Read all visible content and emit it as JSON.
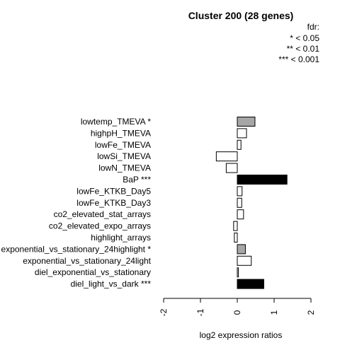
{
  "chart_data": {
    "type": "bar",
    "orientation": "horizontal",
    "title": "Cluster 200 (28 genes)",
    "xlabel": "log2 expression ratios",
    "ylabel": "",
    "xlim": [
      -2,
      2
    ],
    "xticks": [
      "-2",
      "-1",
      "0",
      "1",
      "2"
    ],
    "legend": {
      "title": "fdr:",
      "entries": [
        "* < 0.05",
        "** < 0.01",
        "*** < 0.001"
      ],
      "placement": "top-right"
    },
    "categories": [
      "lowtemp_TMEVA *",
      "highpH_TMEVA",
      "lowFe_TMEVA",
      "lowSi_TMEVA",
      "lowN_TMEVA",
      "BaP ***",
      "lowFe_KTKB_Day5",
      "lowFe_KTKB_Day3",
      "co2_elevated_stat_arrays",
      "co2_elevated_expo_arrays",
      "highlight_arrays",
      "exponential_vs_stationary_24highlight *",
      "exponential_vs_stationary_24light",
      "diel_exponential_vs_stationary",
      "diel_light_vs_dark ***"
    ],
    "values": [
      0.48,
      0.25,
      0.1,
      -0.57,
      -0.3,
      1.35,
      0.13,
      0.12,
      0.17,
      -0.1,
      -0.08,
      0.22,
      0.38,
      0.03,
      0.72
    ],
    "significance": [
      "*",
      "",
      "",
      "",
      "",
      "***",
      "",
      "",
      "",
      "",
      "",
      "*",
      "",
      "",
      "***"
    ],
    "colors": {
      "***": "#000000",
      "*": "#a6a6a6",
      "none": "#ffffff",
      "border": "#000000"
    }
  }
}
